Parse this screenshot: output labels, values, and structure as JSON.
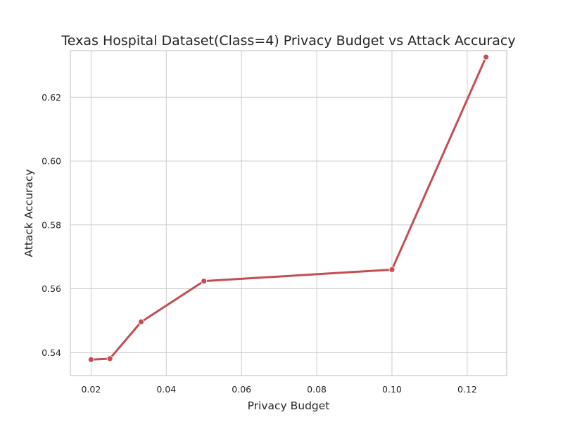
{
  "chart_data": {
    "type": "line",
    "title": "Texas Hospital Dataset(Class=4) Privacy Budget vs Attack Accuracy",
    "xlabel": "Privacy Budget",
    "ylabel": "Attack Accuracy",
    "xlim": [
      0.0145,
      0.1305
    ],
    "ylim": [
      0.5328,
      0.6346
    ],
    "xticks": [
      0.02,
      0.04,
      0.06,
      0.08,
      0.1,
      0.12
    ],
    "xtick_labels": [
      "0.02",
      "0.04",
      "0.06",
      "0.08",
      "0.10",
      "0.12"
    ],
    "yticks": [
      0.54,
      0.56,
      0.58,
      0.6,
      0.62
    ],
    "ytick_labels": [
      "0.54",
      "0.56",
      "0.58",
      "0.60",
      "0.62"
    ],
    "grid": true,
    "color": "#c44e52",
    "series": [
      {
        "x": [
          0.02,
          0.025,
          0.0333,
          0.05,
          0.1,
          0.125
        ],
        "y": [
          0.5378,
          0.5381,
          0.5496,
          0.5624,
          0.566,
          0.6326
        ]
      }
    ]
  }
}
